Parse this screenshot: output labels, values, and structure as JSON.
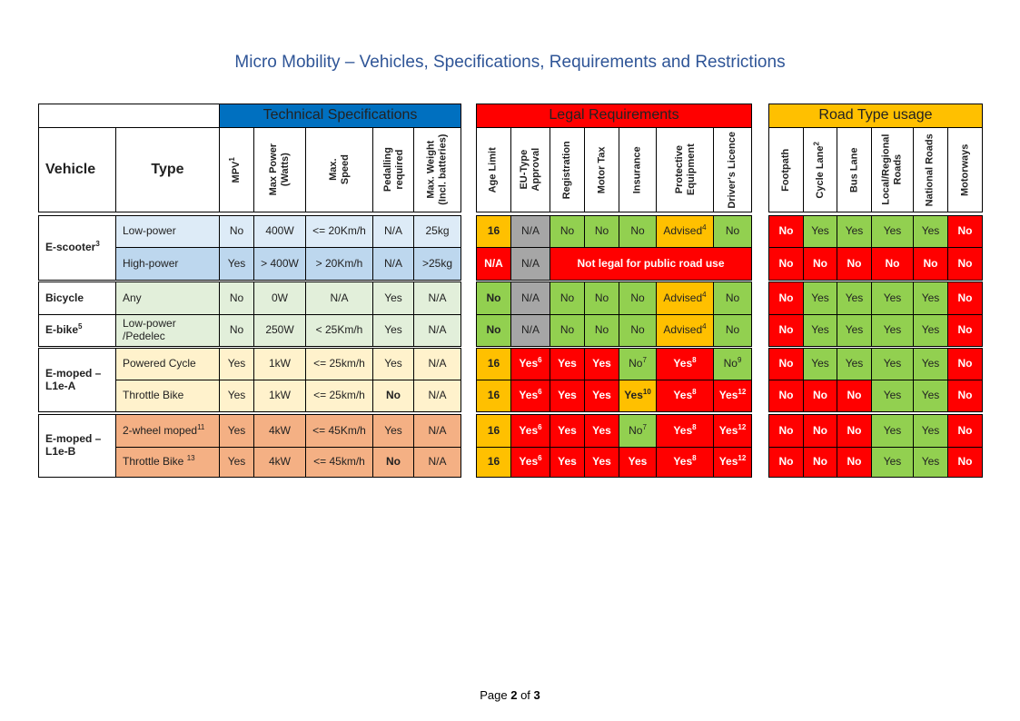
{
  "title": "Micro Mobility – Vehicles, Specifications, Requirements and Restrictions",
  "footer": {
    "pre": "Page ",
    "page": "2",
    "mid": " of ",
    "total": "3"
  },
  "colors": {
    "blue": "#0070c0",
    "red": "#ff0000",
    "amber": "#ffc000",
    "green": "#92d050",
    "grey": "#a6a6a6",
    "scooter_low": "#ddebf7",
    "scooter_high": "#bdd7ee",
    "bike": "#e2efda",
    "moped_a": "#fff2cc",
    "moped_b": "#f4b084"
  },
  "groups": {
    "technical": "Technical Specifications",
    "legal": "Legal Requirements",
    "road": "Road Type usage"
  },
  "headers": {
    "vehicle": "Vehicle",
    "type": "Type",
    "mpv": "MPV",
    "mpv_sup": "1",
    "power": "Max Power\n(Watts)",
    "speed": "Max.\nSpeed",
    "pedal": "Pedalling\nrequired",
    "weight": "Max. Weight\n(Incl. batteries)",
    "age": "Age Limit",
    "eutype": "EU-Type\nApproval",
    "registration": "Registration",
    "motortax": "Motor Tax",
    "insurance": "Insurance",
    "protective": "Protective\nEquipment",
    "licence": "Driver's Licence",
    "footpath": "Footpath",
    "cyclelane": "Cycle Lane",
    "cyclelane_sup": "2",
    "buslane": "Bus Lane",
    "local": "Local/Regional\nRoads",
    "national": "National Roads",
    "motorways": "Motorways"
  },
  "vehicles": [
    {
      "name": "E-scooter",
      "sup": "3"
    },
    {
      "name": "Bicycle",
      "sup": ""
    },
    {
      "name": "E-bike",
      "sup": "5"
    },
    {
      "name": "E-moped –\nL1e-A",
      "sup": ""
    },
    {
      "name": "E-moped –\nL1e-B",
      "sup": ""
    }
  ],
  "not_legal": "Not legal for public road use",
  "rows": [
    {
      "type": "Low-power",
      "type_sup": "",
      "bg": "#ddebf7",
      "tech": [
        "No",
        "400W",
        "<= 20Km/h",
        "N/A",
        "25kg"
      ],
      "legal": [
        [
          "16",
          "",
          ""
        ],
        [
          "N/A",
          "",
          ""
        ],
        [
          "No",
          "",
          ""
        ],
        [
          "No",
          "",
          ""
        ],
        [
          "No",
          "",
          ""
        ],
        [
          "Advised",
          "4",
          ""
        ],
        [
          "No",
          "",
          ""
        ]
      ],
      "legal_bg": [
        "#ffc000",
        "#a6a6a6",
        "#92d050",
        "#92d050",
        "#92d050",
        "#ffc000",
        "#92d050"
      ],
      "road": [
        "No",
        "Yes",
        "Yes",
        "Yes",
        "Yes",
        "No"
      ],
      "road_bg": [
        "#ff0000",
        "#92d050",
        "#92d050",
        "#92d050",
        "#92d050",
        "#ff0000"
      ]
    },
    {
      "type": "High-power",
      "type_sup": "",
      "bg": "#bdd7ee",
      "tech": [
        "Yes",
        "> 400W",
        "> 20Km/h",
        "N/A",
        ">25kg"
      ],
      "legal": [
        [
          "N/A",
          "",
          ""
        ],
        [
          "N/A",
          "",
          ""
        ]
      ],
      "legal_bg": [
        "#ff0000",
        "#a6a6a6"
      ],
      "road": [
        "No",
        "No",
        "No",
        "No",
        "No",
        "No"
      ],
      "road_bg": [
        "#ff0000",
        "#ff0000",
        "#ff0000",
        "#ff0000",
        "#ff0000",
        "#ff0000"
      ]
    },
    {
      "type": "Any",
      "type_sup": "",
      "bg": "#e2efda",
      "tech": [
        "No",
        "0W",
        "N/A",
        "Yes",
        "N/A"
      ],
      "legal": [
        [
          "No",
          "",
          ""
        ],
        [
          "N/A",
          "",
          ""
        ],
        [
          "No",
          "",
          ""
        ],
        [
          "No",
          "",
          ""
        ],
        [
          "No",
          "",
          ""
        ],
        [
          "Advised",
          "4",
          ""
        ],
        [
          "No",
          "",
          ""
        ]
      ],
      "legal_bg": [
        "#92d050",
        "#a6a6a6",
        "#92d050",
        "#92d050",
        "#92d050",
        "#ffc000",
        "#92d050"
      ],
      "road": [
        "No",
        "Yes",
        "Yes",
        "Yes",
        "Yes",
        "No"
      ],
      "road_bg": [
        "#ff0000",
        "#92d050",
        "#92d050",
        "#92d050",
        "#92d050",
        "#ff0000"
      ]
    },
    {
      "type": "Low-power\n/Pedelec",
      "type_sup": "",
      "bg": "#e2efda",
      "tech": [
        "No",
        "250W",
        "< 25Km/h",
        "Yes",
        "N/A"
      ],
      "legal": [
        [
          "No",
          "",
          ""
        ],
        [
          "N/A",
          "",
          ""
        ],
        [
          "No",
          "",
          ""
        ],
        [
          "No",
          "",
          ""
        ],
        [
          "No",
          "",
          ""
        ],
        [
          "Advised",
          "4",
          ""
        ],
        [
          "No",
          "",
          ""
        ]
      ],
      "legal_bg": [
        "#92d050",
        "#a6a6a6",
        "#92d050",
        "#92d050",
        "#92d050",
        "#ffc000",
        "#92d050"
      ],
      "road": [
        "No",
        "Yes",
        "Yes",
        "Yes",
        "Yes",
        "No"
      ],
      "road_bg": [
        "#ff0000",
        "#92d050",
        "#92d050",
        "#92d050",
        "#92d050",
        "#ff0000"
      ]
    },
    {
      "type": "Powered Cycle",
      "type_sup": "",
      "bg": "#fff2cc",
      "tech": [
        "Yes",
        "1kW",
        "<= 25km/h",
        "Yes",
        "N/A"
      ],
      "legal": [
        [
          "16",
          "",
          ""
        ],
        [
          "Yes",
          "6",
          ""
        ],
        [
          "Yes",
          "",
          ""
        ],
        [
          "Yes",
          "",
          ""
        ],
        [
          "No",
          "7",
          ""
        ],
        [
          "Yes",
          "8",
          ""
        ],
        [
          "No",
          "9",
          ""
        ]
      ],
      "legal_bg": [
        "#ffc000",
        "#ff0000",
        "#ff0000",
        "#ff0000",
        "#92d050",
        "#ff0000",
        "#92d050"
      ],
      "road": [
        "No",
        "Yes",
        "Yes",
        "Yes",
        "Yes",
        "No"
      ],
      "road_bg": [
        "#ff0000",
        "#92d050",
        "#92d050",
        "#92d050",
        "#92d050",
        "#ff0000"
      ]
    },
    {
      "type": "Throttle Bike",
      "type_sup": "",
      "bg": "#fff2cc",
      "tech": [
        "Yes",
        "1kW",
        "<= 25km/h",
        "No",
        "N/A"
      ],
      "legal": [
        [
          "16",
          "",
          ""
        ],
        [
          "Yes",
          "6",
          ""
        ],
        [
          "Yes",
          "",
          ""
        ],
        [
          "Yes",
          "",
          ""
        ],
        [
          "Yes",
          "10",
          ""
        ],
        [
          "Yes",
          "8",
          ""
        ],
        [
          "Yes",
          "12",
          ""
        ]
      ],
      "legal_bg": [
        "#ffc000",
        "#ff0000",
        "#ff0000",
        "#ff0000",
        "#ffc000",
        "#ff0000",
        "#ff0000"
      ],
      "road": [
        "No",
        "No",
        "No",
        "Yes",
        "Yes",
        "No"
      ],
      "road_bg": [
        "#ff0000",
        "#ff0000",
        "#ff0000",
        "#92d050",
        "#92d050",
        "#ff0000"
      ]
    },
    {
      "type": "2-wheel moped",
      "type_sup": "11",
      "bg": "#f4b084",
      "tech": [
        "Yes",
        "4kW",
        "<= 45Km/h",
        "Yes",
        "N/A"
      ],
      "legal": [
        [
          "16",
          "",
          ""
        ],
        [
          "Yes",
          "6",
          ""
        ],
        [
          "Yes",
          "",
          ""
        ],
        [
          "Yes",
          "",
          ""
        ],
        [
          "No",
          "7",
          ""
        ],
        [
          "Yes",
          "8",
          ""
        ],
        [
          "Yes",
          "12",
          ""
        ]
      ],
      "legal_bg": [
        "#ffc000",
        "#ff0000",
        "#ff0000",
        "#ff0000",
        "#92d050",
        "#ff0000",
        "#ff0000"
      ],
      "road": [
        "No",
        "No",
        "No",
        "Yes",
        "Yes",
        "No"
      ],
      "road_bg": [
        "#ff0000",
        "#ff0000",
        "#ff0000",
        "#92d050",
        "#92d050",
        "#ff0000"
      ]
    },
    {
      "type": "Throttle Bike ",
      "type_sup": "13",
      "bg": "#f4b084",
      "tech": [
        "Yes",
        "4kW",
        "<= 45km/h",
        "No",
        "N/A"
      ],
      "legal": [
        [
          "16",
          "",
          ""
        ],
        [
          "Yes",
          "6",
          ""
        ],
        [
          "Yes",
          "",
          ""
        ],
        [
          "Yes",
          "",
          ""
        ],
        [
          "Yes",
          "",
          ""
        ],
        [
          "Yes",
          "8",
          ""
        ],
        [
          "Yes",
          "12",
          ""
        ]
      ],
      "legal_bg": [
        "#ffc000",
        "#ff0000",
        "#ff0000",
        "#ff0000",
        "#ff0000",
        "#ff0000",
        "#ff0000"
      ],
      "road": [
        "No",
        "No",
        "No",
        "Yes",
        "Yes",
        "No"
      ],
      "road_bg": [
        "#ff0000",
        "#ff0000",
        "#ff0000",
        "#92d050",
        "#92d050",
        "#ff0000"
      ]
    }
  ]
}
